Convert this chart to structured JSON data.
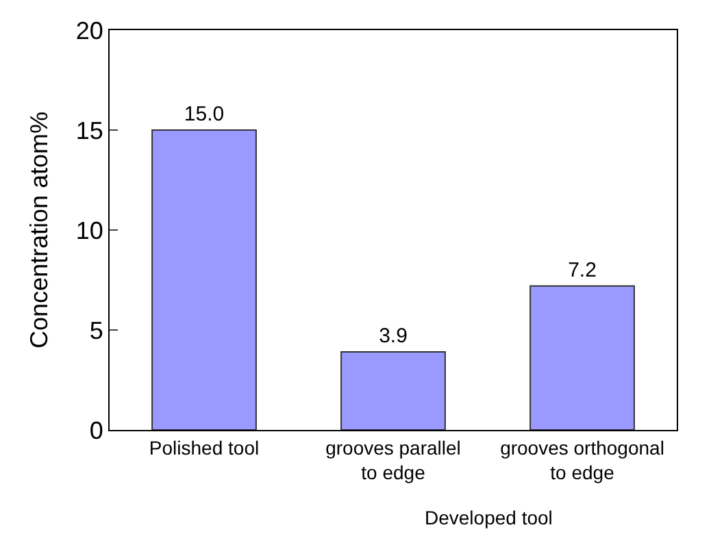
{
  "chart_data": {
    "type": "bar",
    "ylabel": "Concentration atom%",
    "categories": [
      "Polished tool",
      "grooves parallel to edge",
      "grooves orthogonal to edge"
    ],
    "values": [
      15.0,
      3.9,
      7.2
    ],
    "color": "#9999ff",
    "ylim": [
      0,
      20
    ],
    "yticks": [
      0,
      5,
      10,
      15,
      20
    ],
    "value_labels": [
      "15.0",
      "3.9",
      "7.2"
    ],
    "annotations": [
      "Developed tool"
    ]
  }
}
